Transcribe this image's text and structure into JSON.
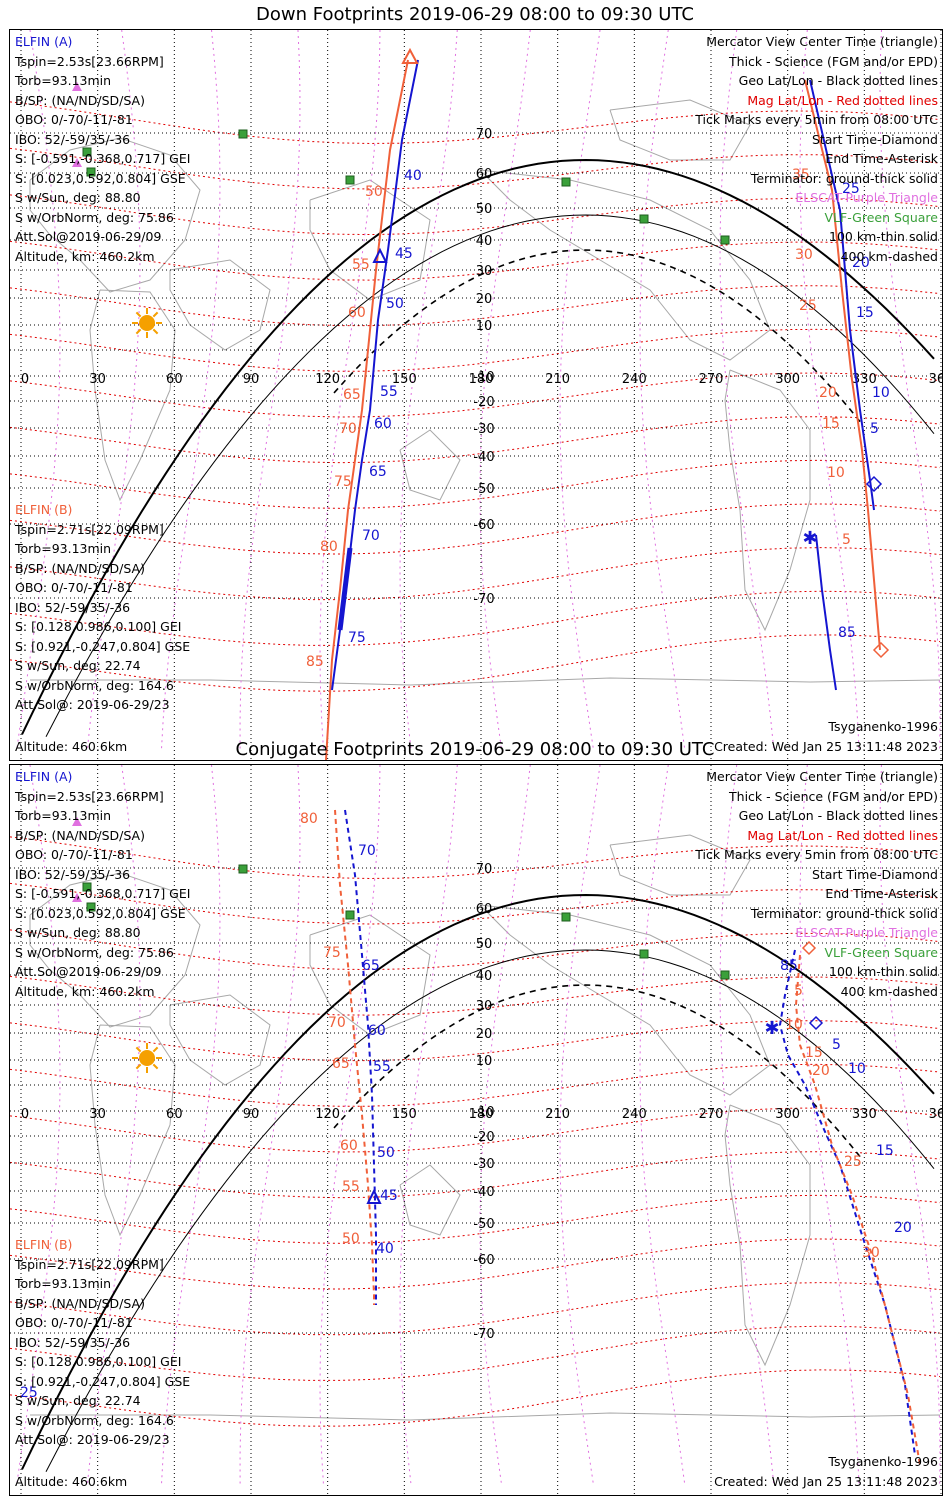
{
  "colors": {
    "elfin_a": "#1515d0",
    "elfin_b": "#f0603a",
    "geo_grid": "#000000",
    "mag_grid": "#e00000",
    "elscat": "#e070e0",
    "vlf": "#3aa03a",
    "land": "#a8a8a8",
    "sun": "#f5a000"
  },
  "icons": [
    "sun-icon",
    "triangle-marker-icon",
    "diamond-marker-icon",
    "asterisk-marker-icon",
    "vlf-square-icon"
  ],
  "panels": [
    {
      "title": "Down Footprints 2019-06-29 08:00 to 09:30 UTC",
      "elfin_a": {
        "header": "ELFIN (A)",
        "lines": [
          "Tspin=2.53s[23.66RPM]",
          "Torb=93.13min",
          "B/SP: (NA/ND/SD/SA)",
          "OBO: 0/-70/-11/-81",
          "IBO: 52/-59/35/-36",
          "S: [-0.591,-0.368,0.717] GEI",
          "S: [0.023,0.592,0.804] GSE",
          "S w/Sun, deg: 88.80",
          "S w/OrbNorm, deg: 75.86",
          "Att.Sol@2019-06-29/09",
          "Altitude, km: 460.2km"
        ]
      },
      "elfin_b": {
        "header": "ELFIN (B)",
        "lines": [
          "Tspin=2.71s[22.09RPM]",
          "Torb=93.13min",
          "B/SP: (NA/ND/SD/SA)",
          "OBO: 0/-70/-11/-81",
          "IBO: 52/-59/35/-36",
          "S: [0.128,0.986,0.100] GEI",
          "S: [0.921,-0.247,0.804] GSE",
          "S w/Sun, deg: 22.74",
          "S w/OrbNorm, deg: 164.6",
          "Att.Sol@: 2019-06-29/23",
          "Altitude: 460.6km"
        ]
      },
      "legend": [
        "Mercator View Center Time (triangle)",
        "Thick - Science (FGM and/or EPD)",
        "Geo Lat/Lon - Black dotted lines",
        "Mag Lat/Lon - Red dotted lines",
        "Tick Marks every 5min from 08:00 UTC",
        "Start Time-Diamond",
        "End Time-Asterisk",
        "Terminator: ground-thick solid",
        "ELSCAT-Purple Triangle",
        "VLF-Green Square",
        "100 km-thin solid",
        "400 km-dashed"
      ],
      "model": "Tsyganenko-1996",
      "created": "Created: Wed Jan 25 13:11:48 2023",
      "lon_ticks": [
        "0",
        "30",
        "60",
        "90",
        "120",
        "150",
        "180",
        "210",
        "240",
        "270",
        "300",
        "330",
        "360"
      ],
      "lat_ticks": [
        "70",
        "60",
        "50",
        "40",
        "30",
        "20",
        "10",
        "-10",
        "-20",
        "-30",
        "-40",
        "-50",
        "-60",
        "-70"
      ],
      "a_tick_labels": [
        "40",
        "45",
        "50",
        "55",
        "60",
        "65",
        "70",
        "75",
        "85",
        "25",
        "20",
        "15",
        "10",
        "5"
      ],
      "b_tick_labels": [
        "50",
        "55",
        "60",
        "65",
        "70",
        "75",
        "80",
        "85",
        "35",
        "30",
        "25",
        "20",
        "15",
        "10",
        "5"
      ]
    },
    {
      "title": "Conjugate Footprints 2019-06-29 08:00 to 09:30 UTC",
      "elfin_a": {
        "header": "ELFIN (A)",
        "lines": [
          "Tspin=2.53s[23.66RPM]",
          "Torb=93.13min",
          "B/SP: (NA/ND/SD/SA)",
          "OBO: 0/-70/-11/-81",
          "IBO: 52/-59/35/-36",
          "S: [-0.591,-0.368,0.717] GEI",
          "S: [0.023,0.592,0.804] GSE",
          "S w/Sun, deg: 88.80",
          "S w/OrbNorm, deg: 75.86",
          "Att.Sol@2019-06-29/09",
          "Altitude, km: 460.2km"
        ]
      },
      "elfin_b": {
        "header": "ELFIN (B)",
        "lines": [
          "Tspin=2.71s[22.09RPM]",
          "Torb=93.13min",
          "B/SP: (NA/ND/SD/SA)",
          "OBO: 0/-70/-11/-81",
          "IBO: 52/-59/35/-36",
          "S: [0.128,0.986,0.100] GEI",
          "S: [0.921,-0.247,0.804] GSE",
          "S w/Sun, deg: 22.74",
          "S w/OrbNorm, deg: 164.6",
          "Att.Sol@: 2019-06-29/23",
          "Altitude: 460.6km"
        ]
      },
      "legend": [
        "Mercator View Center Time (triangle)",
        "Thick - Science (FGM and/or EPD)",
        "Geo Lat/Lon - Black dotted lines",
        "Mag Lat/Lon - Red dotted lines",
        "Tick Marks every 5min from 08:00 UTC",
        "Start Time-Diamond",
        "End Time-Asterisk",
        "Terminator: ground-thick solid",
        "ELSCAT-Purple Triangle",
        "VLF-Green Square",
        "100 km-thin solid",
        "400 km-dashed"
      ],
      "model": "Tsyganenko-1996",
      "created": "Created: Wed Jan 25 13:11:48 2023",
      "lon_ticks": [
        "0",
        "30",
        "60",
        "90",
        "120",
        "150",
        "180",
        "210",
        "240",
        "270",
        "300",
        "330",
        "360"
      ],
      "lat_ticks": [
        "70",
        "60",
        "50",
        "40",
        "30",
        "20",
        "10",
        "-10",
        "-20",
        "-30",
        "-40",
        "-50",
        "-60",
        "-70"
      ],
      "a_tick_labels": [
        "70",
        "65",
        "60",
        "55",
        "50",
        "45",
        "40",
        "85",
        "5",
        "10",
        "15",
        "20",
        "25"
      ],
      "b_tick_labels": [
        "80",
        "75",
        "70",
        "65",
        "60",
        "55",
        "50",
        "5",
        "10",
        "15",
        "20",
        "25",
        "30"
      ]
    }
  ]
}
